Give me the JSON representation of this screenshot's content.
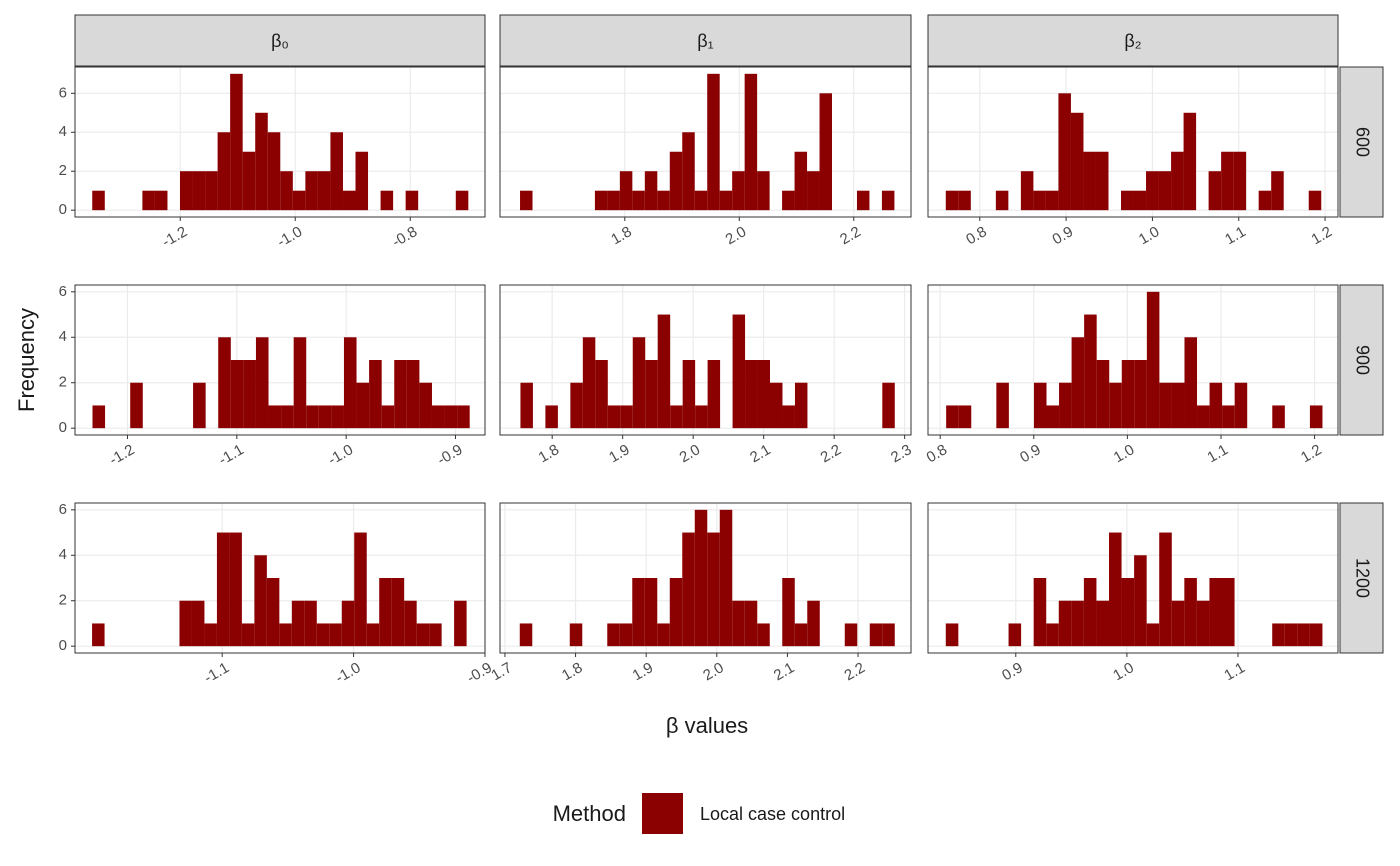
{
  "x_label": "β values",
  "y_label": "Frequency",
  "facet_columns": [
    "β₀",
    "β₁",
    "β₂"
  ],
  "facet_rows": [
    "600",
    "900",
    "1200"
  ],
  "legend": {
    "title": "Method",
    "series": [
      {
        "name": "Local case control",
        "color": "#8b0000"
      }
    ]
  },
  "chart_data": [
    {
      "type": "histogram",
      "color": "#8b0000",
      "grid": true,
      "bins": [
        -1.353,
        -1.3312,
        -1.3094,
        -1.2876,
        -1.2658,
        -1.244,
        -1.2222,
        -1.2004,
        -1.1786,
        -1.1568,
        -1.135,
        -1.1132,
        -1.0914,
        -1.0696,
        -1.0478,
        -1.026,
        -1.0042,
        -0.9824,
        -0.9606,
        -0.9388,
        -0.917,
        -0.8952,
        -0.8734,
        -0.8516,
        -0.8298,
        -0.808,
        -0.7862,
        -0.7644,
        -0.7426,
        -0.7208,
        -0.699
      ],
      "values": [
        1,
        0,
        0,
        0,
        1,
        1,
        0,
        2,
        2,
        2,
        4,
        7,
        3,
        5,
        4,
        2,
        1,
        2,
        2,
        4,
        1,
        3,
        0,
        1,
        0,
        1,
        0,
        0,
        0,
        1
      ],
      "xlim": [
        -1.383,
        -0.67
      ],
      "xticks": [
        -1.2,
        {
          "value": -1,
          "label": "-1.0"
        },
        -0.8
      ],
      "ylim": [
        -0.35,
        7.35
      ],
      "yticks": [
        0,
        2,
        4,
        6
      ]
    },
    {
      "type": "histogram",
      "color": "#8b0000",
      "grid": true,
      "bins": [
        1.617,
        1.6388,
        1.6606,
        1.6824,
        1.7042,
        1.726,
        1.7478,
        1.7696,
        1.7914,
        1.8132,
        1.835,
        1.8568,
        1.8786,
        1.9004,
        1.9222,
        1.944,
        1.9658,
        1.9876,
        2.0094,
        2.0312,
        2.053,
        2.0748,
        2.0966,
        2.1184,
        2.1402,
        2.162,
        2.1838,
        2.2056,
        2.2274,
        2.2492,
        2.271
      ],
      "values": [
        1,
        0,
        0,
        0,
        0,
        0,
        1,
        1,
        2,
        1,
        2,
        1,
        3,
        4,
        1,
        7,
        1,
        2,
        7,
        2,
        0,
        1,
        3,
        2,
        6,
        0,
        0,
        1,
        0,
        1
      ],
      "xlim": [
        1.582,
        2.3
      ],
      "xticks": [
        1.8,
        {
          "value": 2,
          "label": "2.0"
        },
        2.2
      ],
      "ylim": [
        -0.35,
        7.35
      ],
      "yticks": [
        0,
        2,
        4,
        6
      ]
    },
    {
      "type": "histogram",
      "color": "#8b0000",
      "grid": true,
      "bins": [
        0.7606,
        0.7751,
        0.7896,
        0.8041,
        0.8186,
        0.8331,
        0.8476,
        0.8621,
        0.8766,
        0.8911,
        0.9056,
        0.9201,
        0.9346,
        0.9491,
        0.9636,
        0.9781,
        0.9926,
        1.0071,
        1.0216,
        1.0361,
        1.0506,
        1.0651,
        1.0796,
        1.0941,
        1.1086,
        1.1231,
        1.1376,
        1.1521,
        1.1666,
        1.1811,
        1.1956
      ],
      "values": [
        1,
        1,
        0,
        0,
        1,
        0,
        2,
        1,
        1,
        6,
        5,
        3,
        3,
        0,
        1,
        1,
        2,
        2,
        3,
        5,
        0,
        2,
        3,
        3,
        0,
        1,
        2,
        0,
        0,
        1
      ],
      "xlim": [
        0.74,
        1.215
      ],
      "xticks": [
        0.8,
        0.9,
        {
          "value": 1,
          "label": "1.0"
        },
        1.1,
        1.2
      ],
      "ylim": [
        -0.35,
        7.35
      ],
      "yticks": [
        0,
        2,
        4,
        6
      ]
    },
    {
      "type": "histogram",
      "color": "#8b0000",
      "grid": true,
      "bins": [
        -1.232,
        -1.2205,
        -1.209,
        -1.1975,
        -1.186,
        -1.1745,
        -1.163,
        -1.1515,
        -1.14,
        -1.1285,
        -1.117,
        -1.1055,
        -1.094,
        -1.0825,
        -1.071,
        -1.0595,
        -1.048,
        -1.0365,
        -1.025,
        -1.0135,
        -1.002,
        -0.9905,
        -0.979,
        -0.9675,
        -0.956,
        -0.9445,
        -0.933,
        -0.9215,
        -0.91,
        -0.8985,
        -0.887
      ],
      "values": [
        1,
        0,
        0,
        2,
        0,
        0,
        0,
        0,
        2,
        0,
        4,
        3,
        3,
        4,
        1,
        1,
        4,
        1,
        1,
        1,
        4,
        2,
        3,
        1,
        3,
        3,
        2,
        1,
        1,
        1
      ],
      "xlim": [
        -1.248,
        -0.873
      ],
      "xticks": [
        -1.2,
        -1.1,
        {
          "value": -1,
          "label": "-1.0"
        },
        -0.9
      ],
      "ylim": [
        -0.3,
        6.3
      ],
      "yticks": [
        0,
        2,
        4,
        6
      ]
    },
    {
      "type": "histogram",
      "color": "#8b0000",
      "grid": true,
      "bins": [
        1.755,
        1.7727,
        1.7904,
        1.8081,
        1.8258,
        1.8435,
        1.8612,
        1.8789,
        1.8966,
        1.9143,
        1.932,
        1.9497,
        1.9674,
        1.9851,
        2.0028,
        2.0205,
        2.0382,
        2.0559,
        2.0736,
        2.0913,
        2.109,
        2.1267,
        2.1444,
        2.1621,
        2.1798,
        2.1975,
        2.2152,
        2.2329,
        2.2506,
        2.2683,
        2.286
      ],
      "values": [
        2,
        0,
        1,
        0,
        2,
        4,
        3,
        1,
        1,
        4,
        3,
        5,
        1,
        3,
        1,
        3,
        0,
        5,
        3,
        3,
        2,
        1,
        2,
        0,
        0,
        0,
        0,
        0,
        0,
        2
      ],
      "xlim": [
        1.726,
        2.309
      ],
      "xticks": [
        1.8,
        1.9,
        {
          "value": 2,
          "label": "2.0"
        },
        2.1,
        2.2,
        2.3
      ],
      "ylim": [
        -0.3,
        6.3
      ],
      "yticks": [
        0,
        2,
        4,
        6
      ]
    },
    {
      "type": "histogram",
      "color": "#8b0000",
      "grid": true,
      "bins": [
        0.8064,
        0.8198,
        0.8332,
        0.8466,
        0.86,
        0.8734,
        0.8868,
        0.9002,
        0.9136,
        0.927,
        0.9404,
        0.9538,
        0.9672,
        0.9806,
        0.994,
        1.0074,
        1.0208,
        1.0342,
        1.0476,
        1.061,
        1.0744,
        1.0878,
        1.1012,
        1.1146,
        1.128,
        1.1414,
        1.1548,
        1.1682,
        1.1816,
        1.195,
        1.2084
      ],
      "values": [
        1,
        1,
        0,
        0,
        2,
        0,
        0,
        2,
        1,
        2,
        4,
        5,
        3,
        2,
        3,
        3,
        6,
        2,
        2,
        4,
        1,
        2,
        1,
        2,
        0,
        0,
        1,
        0,
        0,
        1
      ],
      "xlim": [
        0.787,
        1.225
      ],
      "xticks": [
        0.8,
        0.9,
        {
          "value": 1,
          "label": "1.0"
        },
        1.1,
        1.2
      ],
      "ylim": [
        -0.3,
        6.3
      ],
      "yticks": [
        0,
        2,
        4,
        6
      ]
    },
    {
      "type": "histogram",
      "color": "#8b0000",
      "grid": true,
      "bins": [
        -1.199,
        -1.1895,
        -1.18,
        -1.1705,
        -1.161,
        -1.1515,
        -1.142,
        -1.1325,
        -1.123,
        -1.1135,
        -1.104,
        -1.0945,
        -1.085,
        -1.0755,
        -1.066,
        -1.0565,
        -1.047,
        -1.0375,
        -1.028,
        -1.0185,
        -1.009,
        -0.9995,
        -0.99,
        -0.9805,
        -0.971,
        -0.9615,
        -0.952,
        -0.9425,
        -0.933,
        -0.9235,
        -0.914
      ],
      "values": [
        1,
        0,
        0,
        0,
        0,
        0,
        0,
        2,
        2,
        1,
        5,
        5,
        1,
        4,
        3,
        1,
        2,
        2,
        1,
        1,
        2,
        5,
        1,
        3,
        3,
        2,
        1,
        1,
        0,
        2
      ],
      "xlim": [
        -1.212,
        -0.9
      ],
      "xticks": [
        -1.1,
        {
          "value": -1,
          "label": "-1.0"
        },
        -0.9
      ],
      "ylim": [
        -0.3,
        6.3
      ],
      "yticks": [
        0,
        2,
        4,
        6
      ]
    },
    {
      "type": "histogram",
      "color": "#8b0000",
      "grid": true,
      "bins": [
        1.721,
        1.7387,
        1.7564,
        1.7741,
        1.7918,
        1.8095,
        1.8272,
        1.8449,
        1.8626,
        1.8803,
        1.898,
        1.9157,
        1.9334,
        1.9511,
        1.9688,
        1.9865,
        2.0042,
        2.0219,
        2.0396,
        2.0573,
        2.075,
        2.0927,
        2.1104,
        2.1281,
        2.1458,
        2.1635,
        2.1812,
        2.1989,
        2.2166,
        2.2343,
        2.252
      ],
      "values": [
        1,
        0,
        0,
        0,
        1,
        0,
        0,
        1,
        1,
        3,
        3,
        1,
        3,
        5,
        6,
        5,
        6,
        2,
        2,
        1,
        0,
        3,
        1,
        2,
        0,
        0,
        1,
        0,
        1,
        1
      ],
      "xlim": [
        1.693,
        2.275
      ],
      "xticks": [
        1.7,
        1.8,
        1.9,
        {
          "value": 2,
          "label": "2.0"
        },
        2.1,
        2.2
      ],
      "ylim": [
        -0.3,
        6.3
      ],
      "yticks": [
        0,
        2,
        4,
        6
      ]
    },
    {
      "type": "histogram",
      "color": "#8b0000",
      "grid": true,
      "bins": [
        0.837,
        0.8483,
        0.8596,
        0.8709,
        0.8822,
        0.8935,
        0.9048,
        0.9161,
        0.9274,
        0.9387,
        0.95,
        0.9613,
        0.9726,
        0.9839,
        0.9952,
        1.0065,
        1.0178,
        1.0291,
        1.0404,
        1.0517,
        1.063,
        1.0743,
        1.0856,
        1.0969,
        1.1082,
        1.1195,
        1.1308,
        1.1421,
        1.1534,
        1.1647,
        1.176
      ],
      "values": [
        1,
        0,
        0,
        0,
        0,
        1,
        0,
        3,
        1,
        2,
        2,
        3,
        2,
        5,
        3,
        4,
        1,
        5,
        2,
        3,
        2,
        3,
        3,
        0,
        0,
        0,
        1,
        1,
        1,
        1
      ],
      "xlim": [
        0.821,
        1.19
      ],
      "xticks": [
        0.9,
        {
          "value": 1,
          "label": "1.0"
        },
        1.1
      ],
      "ylim": [
        -0.3,
        6.3
      ],
      "yticks": [
        0,
        2,
        4,
        6
      ]
    }
  ]
}
